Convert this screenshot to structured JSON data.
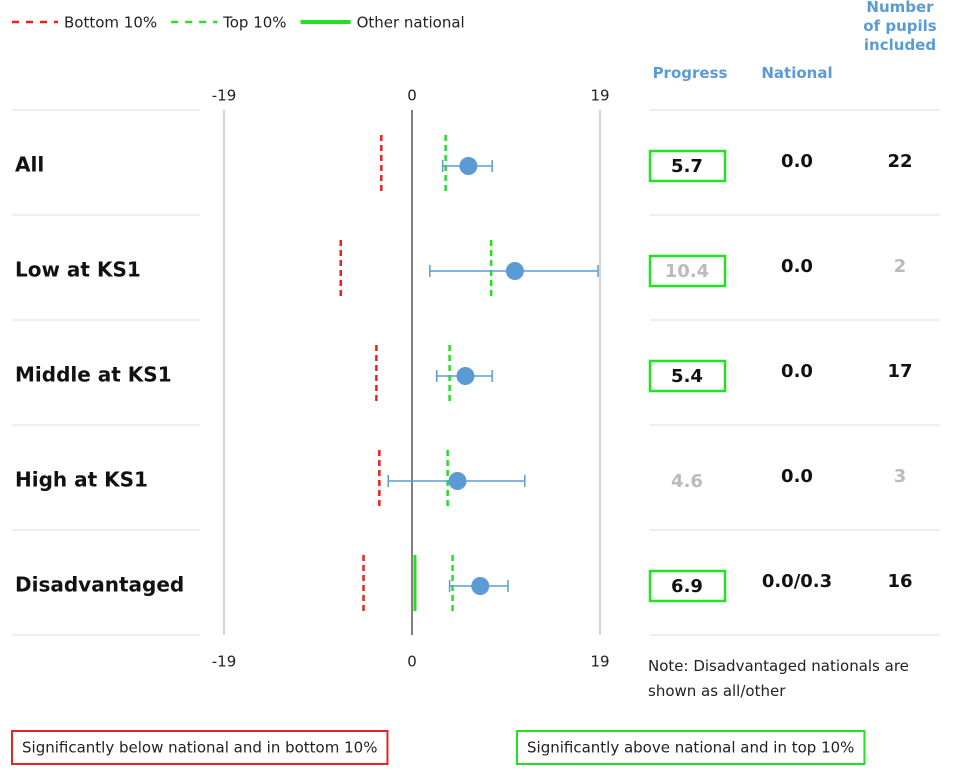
{
  "chart_data": {
    "type": "progress-table",
    "legend": [
      {
        "name": "Bottom 10%",
        "color": "#e8231f",
        "style": "dashed"
      },
      {
        "name": "Top 10%",
        "color": "#22e022",
        "style": "dashed"
      },
      {
        "name": "Other national",
        "color": "#22e022",
        "style": "solid"
      }
    ],
    "columns": [
      "Progress",
      "National",
      "Number of pupils included"
    ],
    "xlim": [
      -19,
      19
    ],
    "xticks": [
      -19,
      0,
      19
    ],
    "point_color": "#5b9bd5",
    "rows": [
      {
        "label": "All",
        "progress": 5.7,
        "ci": [
          3.1,
          8.1
        ],
        "bottom10": -3.1,
        "top10": 3.4,
        "other_national": null,
        "national": "0.0",
        "pupils": 22,
        "significant": true,
        "greyed": false
      },
      {
        "label": "Low at KS1",
        "progress": 10.4,
        "ci": [
          1.8,
          18.8
        ],
        "bottom10": -7.2,
        "top10": 8.0,
        "other_national": null,
        "national": "0.0",
        "pupils": 2,
        "significant": true,
        "greyed": true
      },
      {
        "label": "Middle at KS1",
        "progress": 5.4,
        "ci": [
          2.5,
          8.1
        ],
        "bottom10": -3.6,
        "top10": 3.8,
        "other_national": null,
        "national": "0.0",
        "pupils": 17,
        "significant": true,
        "greyed": false
      },
      {
        "label": "High at KS1",
        "progress": 4.6,
        "ci": [
          -2.4,
          11.4
        ],
        "bottom10": -3.3,
        "top10": 3.6,
        "other_national": null,
        "national": "0.0",
        "pupils": 3,
        "significant": false,
        "greyed": true
      },
      {
        "label": "Disadvantaged",
        "progress": 6.9,
        "ci": [
          3.8,
          9.7
        ],
        "bottom10": -4.9,
        "top10": 4.1,
        "other_national": 0.3,
        "national": "0.0/0.3",
        "pupils": 16,
        "significant": true,
        "greyed": false
      }
    ],
    "note": "Note: Disadvantaged nationals are shown as all/other",
    "key": [
      {
        "text": "Significantly below national and in bottom 10%",
        "color": "#e8231f"
      },
      {
        "text": "Significantly above national and in top 10%",
        "color": "#22e022"
      }
    ]
  }
}
